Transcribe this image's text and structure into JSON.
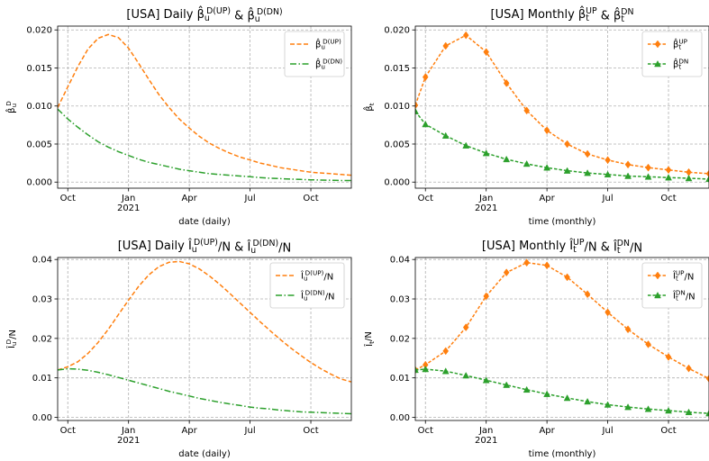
{
  "colors": {
    "up": "#ff7f0e",
    "dn": "#2ca02c"
  },
  "panels": [
    {
      "id": "p1",
      "title_parts": [
        "[USA] Daily ",
        "β̂",
        "u",
        "D(UP)",
        " & ",
        "β̂",
        "u",
        "D(DN)"
      ],
      "title": "[USA] Daily β̂_u^D(UP) & β̂_u^D(DN)",
      "ylabel": "β̂_u^D",
      "xlabel": "date (daily)",
      "xticks": [
        "Oct",
        "Jan",
        "Apr",
        "Jul",
        "Oct"
      ],
      "year_label": "2021",
      "yticks": [
        "0.000",
        "0.005",
        "0.010",
        "0.015",
        "0.020"
      ],
      "legend": [
        {
          "label": "β̂_u^D(UP)",
          "series": "up",
          "style": "dashed"
        },
        {
          "label": "β̂_u^D(DN)",
          "series": "dn",
          "style": "dashdot"
        }
      ],
      "legend_pos": "upper right"
    },
    {
      "id": "p2",
      "title": "[USA] Monthly β̂_t^UP & β̂_t^DN",
      "ylabel": "β̂_t",
      "xlabel": "time (monthly)",
      "xticks": [
        "Oct",
        "Jan",
        "Apr",
        "Jul",
        "Oct"
      ],
      "year_label": "2021",
      "yticks": [
        "0.000",
        "0.005",
        "0.010",
        "0.015",
        "0.020"
      ],
      "legend": [
        {
          "label": "β̂_t^UP",
          "series": "up",
          "marker": "diamond"
        },
        {
          "label": "β̂_t^DN",
          "series": "dn",
          "marker": "triangle"
        }
      ],
      "legend_pos": "upper right"
    },
    {
      "id": "p3",
      "title": "[USA] Daily Î_u^D(UP)/N & Î_u^D(DN)/N",
      "ylabel": "Î_u^D/N",
      "xlabel": "date (daily)",
      "xticks": [
        "Oct",
        "Jan",
        "Apr",
        "Jul",
        "Oct"
      ],
      "year_label": "2021",
      "yticks": [
        "0.00",
        "0.01",
        "0.02",
        "0.03",
        "0.04"
      ],
      "legend": [
        {
          "label": "Î_u^D(UP)/N",
          "series": "up",
          "style": "dashed"
        },
        {
          "label": "Î_u^D(DN)/N",
          "series": "dn",
          "style": "dashdot"
        }
      ],
      "legend_pos": "upper right"
    },
    {
      "id": "p4",
      "title": "[USA] Monthly Î_t^UP/N & Î_t^DN/N",
      "ylabel": "Î_t/N",
      "xlabel": "time (monthly)",
      "xticks": [
        "Oct",
        "Jan",
        "Apr",
        "Jul",
        "Oct"
      ],
      "year_label": "2021",
      "yticks": [
        "0.00",
        "0.01",
        "0.02",
        "0.03",
        "0.04"
      ],
      "legend": [
        {
          "label": "Î_t^UP/N",
          "series": "up",
          "marker": "diamond"
        },
        {
          "label": "Î_t^DN/N",
          "series": "dn",
          "marker": "triangle"
        }
      ],
      "legend_pos": "upper right"
    }
  ],
  "chart_data": [
    {
      "type": "line",
      "panel": "p1",
      "x_unit": "months since 2020-09-01",
      "xlim": [
        0.5,
        15
      ],
      "ylim": [
        -0.0008,
        0.0205
      ],
      "xtick_values": [
        1,
        4,
        7,
        10,
        13
      ],
      "ytick_values": [
        0,
        0.005,
        0.01,
        0.015,
        0.02
      ],
      "series": [
        {
          "name": "up",
          "x": [
            0.5,
            1,
            1.5,
            2,
            2.5,
            3,
            3.5,
            4,
            4.5,
            5,
            5.5,
            6,
            6.5,
            7,
            7.5,
            8,
            8.5,
            9,
            9.5,
            10,
            10.5,
            11,
            11.5,
            12,
            12.5,
            13,
            13.5,
            14,
            14.5,
            15
          ],
          "y": [
            0.0098,
            0.0125,
            0.0152,
            0.0175,
            0.0189,
            0.0194,
            0.019,
            0.0176,
            0.0156,
            0.0135,
            0.0115,
            0.0098,
            0.0083,
            0.0071,
            0.006,
            0.0051,
            0.0044,
            0.0038,
            0.0033,
            0.0029,
            0.0025,
            0.0022,
            0.0019,
            0.0017,
            0.0015,
            0.0013,
            0.0012,
            0.0011,
            0.001,
            0.0009
          ]
        },
        {
          "name": "dn",
          "x": [
            0.5,
            1,
            1.5,
            2,
            2.5,
            3,
            3.5,
            4,
            4.5,
            5,
            5.5,
            6,
            6.5,
            7,
            7.5,
            8,
            8.5,
            9,
            9.5,
            10,
            10.5,
            11,
            11.5,
            12,
            12.5,
            13,
            13.5,
            14,
            14.5,
            15
          ],
          "y": [
            0.0096,
            0.0083,
            0.0072,
            0.0062,
            0.0053,
            0.0046,
            0.004,
            0.0035,
            0.003,
            0.0026,
            0.0023,
            0.002,
            0.0017,
            0.0015,
            0.0013,
            0.0011,
            0.001,
            0.0009,
            0.0008,
            0.0007,
            0.0006,
            0.0005,
            0.00045,
            0.0004,
            0.00035,
            0.0003,
            0.00027,
            0.00024,
            0.00021,
            0.0002
          ]
        }
      ]
    },
    {
      "type": "line",
      "panel": "p2",
      "x_unit": "months since 2020-09-01",
      "xlim": [
        0.5,
        15
      ],
      "ylim": [
        -0.0008,
        0.0205
      ],
      "xtick_values": [
        1,
        4,
        7,
        10,
        13
      ],
      "ytick_values": [
        0,
        0.005,
        0.01,
        0.015,
        0.02
      ],
      "series": [
        {
          "name": "up",
          "x": [
            0.5,
            1,
            2,
            3,
            4,
            5,
            6,
            7,
            8,
            9,
            10,
            11,
            12,
            13,
            14,
            15
          ],
          "y": [
            0.0101,
            0.0138,
            0.0179,
            0.0193,
            0.0171,
            0.013,
            0.0094,
            0.0068,
            0.005,
            0.0037,
            0.0029,
            0.0023,
            0.0019,
            0.0016,
            0.0013,
            0.0011
          ]
        },
        {
          "name": "dn",
          "x": [
            0.5,
            1,
            2,
            3,
            4,
            5,
            6,
            7,
            8,
            9,
            10,
            11,
            12,
            13,
            14,
            15
          ],
          "y": [
            0.0093,
            0.0076,
            0.0061,
            0.0048,
            0.0038,
            0.003,
            0.0024,
            0.0019,
            0.0015,
            0.0012,
            0.001,
            0.0008,
            0.0007,
            0.0006,
            0.0005,
            0.0004
          ]
        }
      ]
    },
    {
      "type": "line",
      "panel": "p3",
      "x_unit": "months since 2020-09-01",
      "xlim": [
        0.5,
        15
      ],
      "ylim": [
        -0.0008,
        0.0405
      ],
      "xtick_values": [
        1,
        4,
        7,
        10,
        13
      ],
      "ytick_values": [
        0,
        0.01,
        0.02,
        0.03,
        0.04
      ],
      "series": [
        {
          "name": "up",
          "x": [
            0.5,
            1,
            1.5,
            2,
            2.5,
            3,
            3.5,
            4,
            4.5,
            5,
            5.5,
            6,
            6.5,
            7,
            7.5,
            8,
            8.5,
            9,
            9.5,
            10,
            10.5,
            11,
            11.5,
            12,
            12.5,
            13,
            13.5,
            14,
            14.5,
            15
          ],
          "y": [
            0.012,
            0.0128,
            0.0141,
            0.0162,
            0.019,
            0.0223,
            0.026,
            0.0297,
            0.0332,
            0.0361,
            0.0382,
            0.0393,
            0.0395,
            0.0389,
            0.0376,
            0.0358,
            0.0337,
            0.0314,
            0.029,
            0.0266,
            0.0242,
            0.0219,
            0.0197,
            0.0176,
            0.0157,
            0.0139,
            0.0123,
            0.0109,
            0.0097,
            0.009
          ]
        },
        {
          "name": "dn",
          "x": [
            0.5,
            1,
            1.5,
            2,
            2.5,
            3,
            3.5,
            4,
            4.5,
            5,
            5.5,
            6,
            6.5,
            7,
            7.5,
            8,
            8.5,
            9,
            9.5,
            10,
            10.5,
            11,
            11.5,
            12,
            12.5,
            13,
            13.5,
            14,
            14.5,
            15
          ],
          "y": [
            0.012,
            0.0123,
            0.0122,
            0.0119,
            0.0114,
            0.0108,
            0.0101,
            0.0094,
            0.0087,
            0.008,
            0.0073,
            0.0066,
            0.006,
            0.0054,
            0.0048,
            0.0043,
            0.0038,
            0.0034,
            0.003,
            0.0026,
            0.0023,
            0.0021,
            0.0018,
            0.0016,
            0.0014,
            0.0013,
            0.0012,
            0.0011,
            0.001,
            0.0009
          ]
        }
      ]
    },
    {
      "type": "line",
      "panel": "p4",
      "x_unit": "months since 2020-09-01",
      "xlim": [
        0.5,
        15
      ],
      "ylim": [
        -0.0008,
        0.0405
      ],
      "xtick_values": [
        1,
        4,
        7,
        10,
        13
      ],
      "ytick_values": [
        0,
        0.01,
        0.02,
        0.03,
        0.04
      ],
      "series": [
        {
          "name": "up",
          "x": [
            0.5,
            1,
            2,
            3,
            4,
            5,
            6,
            7,
            8,
            9,
            10,
            11,
            12,
            13,
            14,
            15
          ],
          "y": [
            0.012,
            0.0133,
            0.0168,
            0.0228,
            0.0307,
            0.0367,
            0.0392,
            0.0385,
            0.0355,
            0.0312,
            0.0266,
            0.0223,
            0.0185,
            0.0153,
            0.0124,
            0.0098
          ]
        },
        {
          "name": "dn",
          "x": [
            0.5,
            1,
            2,
            3,
            4,
            5,
            6,
            7,
            8,
            9,
            10,
            11,
            12,
            13,
            14,
            15
          ],
          "y": [
            0.012,
            0.0122,
            0.0117,
            0.0106,
            0.0094,
            0.0082,
            0.007,
            0.0059,
            0.0049,
            0.004,
            0.0032,
            0.0026,
            0.0021,
            0.0017,
            0.0013,
            0.001
          ]
        }
      ]
    }
  ]
}
